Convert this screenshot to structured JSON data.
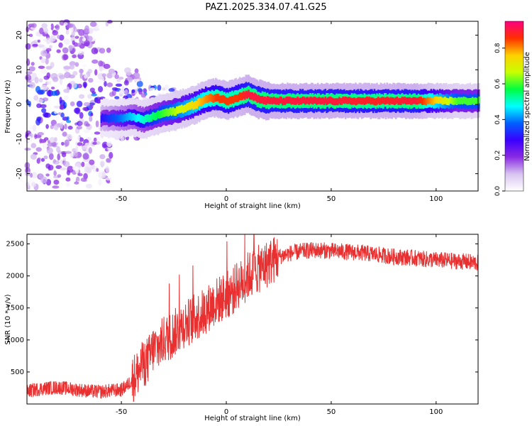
{
  "title": "PAZ1.2025.334.07.41.G25",
  "chart_data": [
    {
      "type": "heatmap",
      "title": "PAZ1.2025.334.07.41.G25",
      "xlabel": "Height of straight line (km)",
      "ylabel": "Frequency (Hz)",
      "xlim": [
        -95,
        120
      ],
      "ylim": [
        -25,
        24
      ],
      "xticks": [
        -50,
        0,
        50,
        100
      ],
      "yticks": [
        -20,
        -10,
        0,
        10,
        20
      ],
      "colorbar": {
        "label": "Normalized spectral amplitude",
        "range": [
          0,
          0.95
        ],
        "ticks": [
          0.0,
          0.2,
          0.4,
          0.6,
          0.8
        ],
        "colormap": [
          "#ffffff",
          "#d8c4f0",
          "#8a2be2",
          "#3a00ff",
          "#0060ff",
          "#00ffff",
          "#00ff40",
          "#c8ff00",
          "#ffd000",
          "#ff3000",
          "#ff0080"
        ]
      },
      "ridge_track": {
        "x": [
          -60,
          -50,
          -45,
          -40,
          -35,
          -30,
          -25,
          -20,
          -15,
          -10,
          -5,
          0,
          5,
          10,
          15,
          20,
          30,
          50,
          70,
          90,
          110,
          120
        ],
        "frequency": [
          -4,
          -4,
          -3.5,
          -4.5,
          -3.5,
          -2.5,
          -2,
          -1,
          0,
          1.5,
          2,
          1,
          2,
          3,
          1.5,
          1,
          1,
          1,
          1,
          1,
          1,
          1
        ],
        "amplitude": [
          0.3,
          0.4,
          0.45,
          0.5,
          0.55,
          0.6,
          0.65,
          0.7,
          0.75,
          0.8,
          0.85,
          0.85,
          0.85,
          0.9,
          0.9,
          0.9,
          0.9,
          0.9,
          0.88,
          0.9,
          0.6,
          0.6
        ]
      }
    },
    {
      "type": "line",
      "xlabel": "Height of straight line (km)",
      "ylabel": "SNR (10 * v/v)",
      "xlim": [
        -95,
        120
      ],
      "ylim": [
        0,
        2650
      ],
      "xticks": [
        -50,
        0,
        50,
        100
      ],
      "yticks": [
        500,
        1000,
        1500,
        2000,
        2500
      ],
      "series": [
        {
          "name": "SNR",
          "color": "#e83030",
          "x": [
            -95,
            -90,
            -85,
            -80,
            -75,
            -70,
            -65,
            -60,
            -55,
            -50,
            -47,
            -45,
            -42,
            -40,
            -37,
            -35,
            -32,
            -30,
            -27,
            -25,
            -22,
            -20,
            -17,
            -15,
            -12,
            -10,
            -7,
            -5,
            -2,
            0,
            3,
            5,
            8,
            10,
            13,
            15,
            18,
            20,
            25,
            30,
            35,
            40,
            45,
            50,
            55,
            60,
            65,
            70,
            75,
            80,
            85,
            90,
            95,
            100,
            105,
            110,
            115,
            120
          ],
          "values": [
            200,
            230,
            250,
            260,
            240,
            220,
            200,
            190,
            210,
            220,
            300,
            380,
            500,
            600,
            700,
            850,
            900,
            1000,
            1050,
            1100,
            1200,
            1250,
            1300,
            1350,
            1400,
            1450,
            1550,
            1600,
            1650,
            1700,
            1750,
            1850,
            1900,
            2000,
            2050,
            2100,
            2150,
            2200,
            2300,
            2350,
            2380,
            2400,
            2400,
            2390,
            2380,
            2370,
            2360,
            2340,
            2320,
            2300,
            2290,
            2280,
            2260,
            2250,
            2240,
            2230,
            2220,
            2200
          ]
        }
      ]
    }
  ]
}
